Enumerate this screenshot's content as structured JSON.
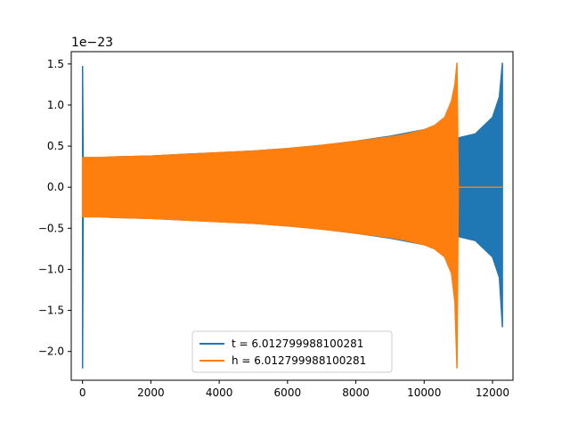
{
  "chart_data": {
    "type": "line",
    "title": "",
    "xlabel": "",
    "ylabel": "",
    "y_offset_text": "1e−23",
    "xlim": [
      -330,
      12600
    ],
    "ylim": [
      -2.35,
      1.65
    ],
    "xticks": [
      0,
      2000,
      4000,
      6000,
      8000,
      10000,
      12000
    ],
    "xtick_labels": [
      "0",
      "2000",
      "4000",
      "6000",
      "8000",
      "10000",
      "12000"
    ],
    "yticks": [
      -2.0,
      -1.5,
      -1.0,
      -0.5,
      0.0,
      0.5,
      1.0,
      1.5
    ],
    "ytick_labels": [
      "−2.0",
      "−1.5",
      "−1.0",
      "−0.5",
      "0.0",
      "0.5",
      "1.0",
      "1.5"
    ],
    "grid": false,
    "legend_position": "lower center",
    "series": [
      {
        "name": "t = 6.012799988100281",
        "color": "#1f77b4",
        "x": [
          0,
          20,
          500,
          1000,
          2000,
          3000,
          4000,
          5000,
          6000,
          7000,
          8000,
          9000,
          10000,
          10500,
          10900,
          10960,
          11000,
          11500,
          12000,
          12200,
          12290
        ],
        "upper": [
          1.47,
          0.36,
          0.36,
          0.37,
          0.38,
          0.4,
          0.42,
          0.44,
          0.47,
          0.51,
          0.56,
          0.62,
          0.7,
          0.76,
          0.6,
          0.6,
          0.6,
          0.65,
          0.85,
          1.1,
          1.51
        ],
        "lower": [
          -2.2,
          -0.36,
          -0.36,
          -0.37,
          -0.38,
          -0.4,
          -0.42,
          -0.44,
          -0.47,
          -0.51,
          -0.56,
          -0.62,
          -0.7,
          -0.76,
          -0.6,
          -0.6,
          -0.6,
          -0.65,
          -0.85,
          -1.1,
          -1.7
        ]
      },
      {
        "name": "h = 6.012799988100281",
        "color": "#ff7f0e",
        "x": [
          0,
          20,
          500,
          1000,
          2000,
          3000,
          4000,
          5000,
          6000,
          7000,
          8000,
          9000,
          9500,
          10000,
          10300,
          10600,
          10800,
          10900,
          10960,
          11000,
          12290
        ],
        "upper": [
          0.36,
          0.36,
          0.36,
          0.37,
          0.38,
          0.4,
          0.42,
          0.44,
          0.47,
          0.51,
          0.56,
          0.61,
          0.65,
          0.7,
          0.75,
          0.85,
          1.05,
          1.25,
          1.51,
          0.0,
          0.0
        ],
        "lower": [
          -0.36,
          -0.36,
          -0.36,
          -0.37,
          -0.38,
          -0.4,
          -0.42,
          -0.44,
          -0.47,
          -0.51,
          -0.56,
          -0.61,
          -0.65,
          -0.7,
          -0.75,
          -0.85,
          -1.05,
          -1.4,
          -2.2,
          0.0,
          0.0
        ]
      }
    ]
  }
}
